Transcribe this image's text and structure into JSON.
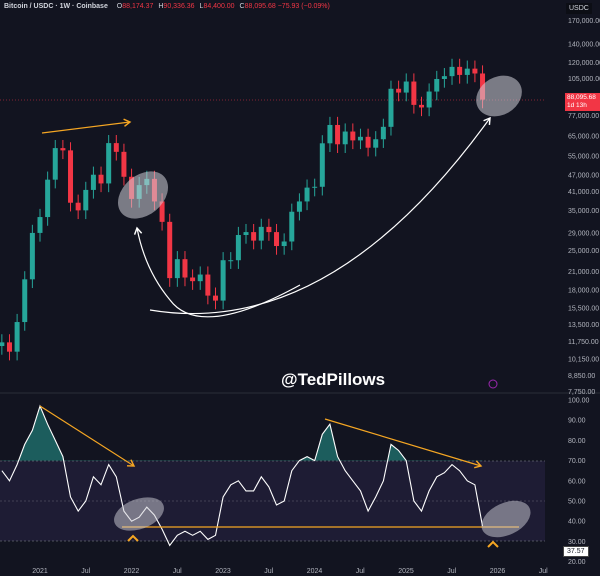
{
  "header": {
    "title": "Bitcoin / USDC · 1W · Coinbase",
    "open_label": "O",
    "open": "88,174.37",
    "high_label": "H",
    "high": "90,336.36",
    "low_label": "L",
    "low": "84,400.00",
    "close_label": "C",
    "close": "88,095.68",
    "change": "−75.93 (−0.09%)"
  },
  "currency": "USDC",
  "price_tag": {
    "price": "88,095.68",
    "countdown": "1d 13h"
  },
  "rsi_tag": "37.57",
  "watermark": "@TedPillows",
  "colors": {
    "background": "#121420",
    "up": "#26a69a",
    "down": "#f23645",
    "rsi_line": "#ffffff",
    "rsi_band": "#7e57c2",
    "annotation_orange": "#f5a623",
    "annotation_white": "#ffffff"
  },
  "chart_data": [
    {
      "type": "candlestick",
      "scale": "log",
      "ylim": [
        7750,
        170000
      ],
      "y_ticks": [
        "170,000.00",
        "140,000.00",
        "120,000.00",
        "105,000.00",
        "77,000.00",
        "65,000.00",
        "55,000.00",
        "47,000.00",
        "41,000.00",
        "35,000.00",
        "29,000.00",
        "25,000.00",
        "21,000.00",
        "18,000.00",
        "15,500.00",
        "13,500.00",
        "11,750.00",
        "10,150.00",
        "8,850.00",
        "7,750.00"
      ],
      "x_ticks": [
        "2021",
        "Jul",
        "2022",
        "Jul",
        "2023",
        "Jul",
        "2024",
        "Jul",
        "2025",
        "Jul",
        "2026",
        "Jul"
      ],
      "x_start": "2020-08",
      "closes": [
        11650,
        10780,
        13800,
        19700,
        29000,
        33100,
        45200,
        58800,
        57700,
        37300,
        35000,
        41500,
        47100,
        43800,
        61300,
        57000,
        46300,
        38500,
        43200,
        45500,
        37700,
        31800,
        19900,
        23300,
        20000,
        19400,
        20500,
        17200,
        16500,
        23100,
        23100,
        28500,
        29200,
        27200,
        30500,
        29200,
        26000,
        27000,
        34600,
        37700,
        42300,
        42600,
        61200,
        71300,
        60700,
        67500,
        62700,
        64600,
        59000,
        63300,
        70200,
        96400,
        93400,
        102400,
        84300,
        82500,
        94200,
        104600,
        107100,
        115700,
        108200,
        114000,
        109500,
        88095.68
      ]
    },
    {
      "type": "line",
      "ylim": [
        20,
        100
      ],
      "band": [
        30,
        70
      ],
      "y_ticks": [
        "100.00",
        "90.00",
        "80.00",
        "70.00",
        "60.00",
        "50.00",
        "40.00",
        "30.00",
        "20.00"
      ],
      "x_start": "2020-08",
      "values": [
        65,
        60,
        68,
        78,
        85,
        97,
        88,
        80,
        72,
        52,
        45,
        50,
        62,
        58,
        68,
        62,
        45,
        40,
        42,
        47,
        43,
        36,
        28,
        33,
        35,
        33,
        35,
        31,
        33,
        52,
        58,
        60,
        55,
        55,
        62,
        57,
        48,
        50,
        65,
        70,
        72,
        70,
        83,
        88,
        72,
        65,
        60,
        55,
        45,
        52,
        60,
        78,
        75,
        70,
        50,
        45,
        55,
        62,
        64,
        68,
        65,
        60,
        58,
        37.57
      ],
      "support_level": 37
    }
  ]
}
